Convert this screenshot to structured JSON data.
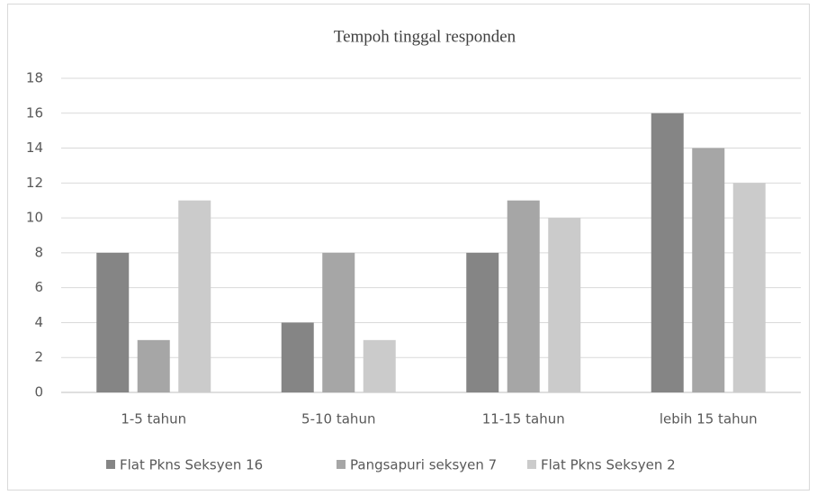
{
  "chart_data": {
    "type": "bar",
    "title": "Tempoh tinggal responden",
    "categories": [
      "1-5 tahun",
      "5-10 tahun",
      "11-15 tahun",
      "lebih 15 tahun"
    ],
    "series": [
      {
        "name": "Flat Pkns Seksyen 16",
        "color": "#858585",
        "values": [
          8,
          4,
          8,
          16
        ]
      },
      {
        "name": "Pangsapuri seksyen 7",
        "color": "#a6a6a6",
        "values": [
          3,
          8,
          11,
          14
        ]
      },
      {
        "name": "Flat Pkns Seksyen 2",
        "color": "#cbcbcb",
        "values": [
          11,
          3,
          10,
          12
        ]
      }
    ],
    "ylim": [
      0,
      18
    ],
    "yticks": [
      0,
      2,
      4,
      6,
      8,
      10,
      12,
      14,
      16,
      18
    ],
    "grid": true,
    "legend": "bottom"
  }
}
